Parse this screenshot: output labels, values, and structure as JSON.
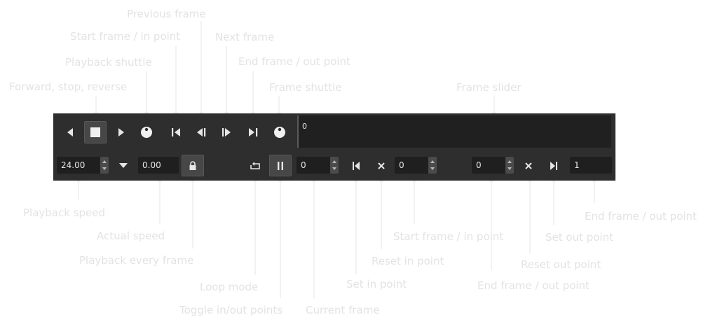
{
  "toolbar": {
    "playback_speed": "24.00",
    "actual_speed": "0.00",
    "frame_slider_value": "0",
    "current_frame": "0",
    "in_point": "0",
    "out_point": "0",
    "end_frame": "1"
  },
  "icons": {
    "reverse": "triangle-left-icon",
    "stop": "square-stop-icon",
    "forward": "triangle-right-icon",
    "playback_shuttle": "shuttle-dial-icon",
    "start_frame": "skip-to-start-icon",
    "prev_frame": "step-back-icon",
    "next_frame": "step-forward-icon",
    "end_frame": "skip-to-end-icon",
    "frame_shuttle": "shuttle-dial-icon",
    "speed_dropdown": "chevron-down-icon",
    "every_frame": "lock-icon",
    "loop_mode": "loop-icon",
    "toggle_in_out": "pause-bars-icon",
    "set_in": "set-in-icon",
    "reset_in": "close-icon",
    "reset_out": "close-icon",
    "set_out": "set-out-icon"
  },
  "labels": {
    "previous_frame": "Previous frame",
    "start_frame_top": "Start frame / in point",
    "next_frame": "Next frame",
    "playback_shuttle": "Playback shuttle",
    "end_frame_top": "End frame / out point",
    "forward_stop_reverse": "Forward, stop, reverse",
    "frame_shuttle": "Frame shuttle",
    "frame_slider": "Frame slider",
    "playback_speed": "Playback speed",
    "actual_speed": "Actual speed",
    "playback_every_frame": "Playback every frame",
    "loop_mode": "Loop mode",
    "toggle_in_out": "Toggle in/out points",
    "current_frame": "Current frame",
    "set_in_point": "Set in point",
    "reset_in_point": "Reset in point",
    "start_frame_bottom": "Start frame / in point",
    "end_frame_bottom": "End frame / out point",
    "reset_out_point": "Reset out point",
    "set_out_point": "Set out point",
    "end_frame_right": "End frame / out point"
  },
  "colors": {
    "panel": "#2e2e2e",
    "field": "#1f1f1f",
    "icon": "#e6e6e6",
    "annotation": "#e3e3e3"
  }
}
